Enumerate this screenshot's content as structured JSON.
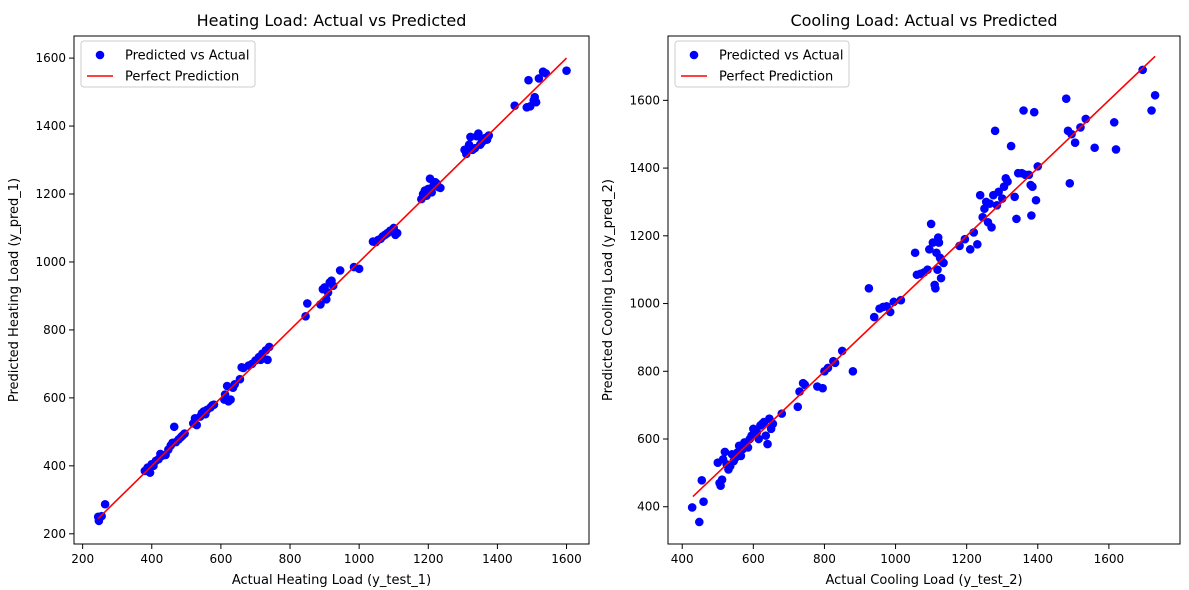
{
  "chart_data": [
    {
      "type": "scatter",
      "title": "Heating Load: Actual vs Predicted",
      "xlabel": "Actual Heating Load (y_test_1)",
      "ylabel": "Predicted Heating Load (y_pred_1)",
      "xlim": [
        175,
        1665
      ],
      "ylim": [
        170,
        1665
      ],
      "xticks": [
        200,
        400,
        600,
        800,
        1000,
        1200,
        1400,
        1600
      ],
      "yticks": [
        200,
        400,
        600,
        800,
        1000,
        1200,
        1400,
        1600
      ],
      "grid": false,
      "legend_position": "top-left",
      "legend": [
        "Predicted vs Actual",
        "Perfect Prediction"
      ],
      "scatter_color": "#0000ff",
      "line_color": "#ff0000",
      "line": {
        "x": [
          245,
          1600
        ],
        "y": [
          245,
          1600
        ]
      },
      "points": [
        [
          245,
          250
        ],
        [
          247,
          238
        ],
        [
          255,
          252
        ],
        [
          265,
          287
        ],
        [
          380,
          385
        ],
        [
          388,
          395
        ],
        [
          395,
          380
        ],
        [
          400,
          405
        ],
        [
          405,
          400
        ],
        [
          412,
          415
        ],
        [
          420,
          420
        ],
        [
          425,
          435
        ],
        [
          430,
          430
        ],
        [
          440,
          432
        ],
        [
          448,
          448
        ],
        [
          455,
          460
        ],
        [
          460,
          468
        ],
        [
          465,
          515
        ],
        [
          470,
          470
        ],
        [
          478,
          478
        ],
        [
          485,
          485
        ],
        [
          490,
          490
        ],
        [
          495,
          495
        ],
        [
          520,
          525
        ],
        [
          525,
          540
        ],
        [
          530,
          520
        ],
        [
          540,
          545
        ],
        [
          545,
          555
        ],
        [
          550,
          560
        ],
        [
          555,
          552
        ],
        [
          560,
          565
        ],
        [
          570,
          572
        ],
        [
          575,
          578
        ],
        [
          580,
          580
        ],
        [
          610,
          595
        ],
        [
          612,
          610
        ],
        [
          618,
          635
        ],
        [
          622,
          590
        ],
        [
          628,
          595
        ],
        [
          635,
          630
        ],
        [
          640,
          640
        ],
        [
          655,
          655
        ],
        [
          660,
          690
        ],
        [
          665,
          688
        ],
        [
          680,
          695
        ],
        [
          690,
          700
        ],
        [
          700,
          710
        ],
        [
          710,
          720
        ],
        [
          715,
          712
        ],
        [
          720,
          730
        ],
        [
          730,
          740
        ],
        [
          735,
          712
        ],
        [
          740,
          750
        ],
        [
          845,
          840
        ],
        [
          850,
          878
        ],
        [
          888,
          875
        ],
        [
          895,
          920
        ],
        [
          900,
          925
        ],
        [
          905,
          890
        ],
        [
          910,
          910
        ],
        [
          915,
          940
        ],
        [
          920,
          945
        ],
        [
          925,
          930
        ],
        [
          945,
          975
        ],
        [
          985,
          985
        ],
        [
          1000,
          980
        ],
        [
          1040,
          1060
        ],
        [
          1048,
          1058
        ],
        [
          1055,
          1065
        ],
        [
          1062,
          1068
        ],
        [
          1068,
          1075
        ],
        [
          1075,
          1080
        ],
        [
          1082,
          1085
        ],
        [
          1090,
          1092
        ],
        [
          1095,
          1090
        ],
        [
          1100,
          1100
        ],
        [
          1105,
          1080
        ],
        [
          1110,
          1085
        ],
        [
          1180,
          1185
        ],
        [
          1185,
          1200
        ],
        [
          1190,
          1210
        ],
        [
          1195,
          1195
        ],
        [
          1200,
          1215
        ],
        [
          1205,
          1245
        ],
        [
          1210,
          1205
        ],
        [
          1215,
          1225
        ],
        [
          1220,
          1235
        ],
        [
          1225,
          1230
        ],
        [
          1230,
          1220
        ],
        [
          1235,
          1218
        ],
        [
          1305,
          1330
        ],
        [
          1310,
          1318
        ],
        [
          1318,
          1345
        ],
        [
          1322,
          1368
        ],
        [
          1328,
          1330
        ],
        [
          1335,
          1335
        ],
        [
          1340,
          1370
        ],
        [
          1345,
          1378
        ],
        [
          1350,
          1345
        ],
        [
          1355,
          1352
        ],
        [
          1360,
          1358
        ],
        [
          1365,
          1365
        ],
        [
          1370,
          1360
        ],
        [
          1375,
          1372
        ],
        [
          1450,
          1460
        ],
        [
          1485,
          1455
        ],
        [
          1490,
          1535
        ],
        [
          1495,
          1458
        ],
        [
          1505,
          1475
        ],
        [
          1508,
          1485
        ],
        [
          1512,
          1470
        ],
        [
          1520,
          1540
        ],
        [
          1532,
          1560
        ],
        [
          1540,
          1555
        ],
        [
          1600,
          1563
        ]
      ]
    },
    {
      "type": "scatter",
      "title": "Cooling Load: Actual vs Predicted",
      "xlabel": "Actual Cooling Load (y_test_2)",
      "ylabel": "Predicted Cooling Load (y_pred_2)",
      "xlim": [
        360,
        1800
      ],
      "ylim": [
        290,
        1790
      ],
      "xticks": [
        400,
        600,
        800,
        1000,
        1200,
        1400,
        1600
      ],
      "yticks": [
        400,
        600,
        800,
        1000,
        1200,
        1400,
        1600
      ],
      "grid": false,
      "legend_position": "top-left",
      "legend": [
        "Predicted vs Actual",
        "Perfect Prediction"
      ],
      "scatter_color": "#0000ff",
      "line_color": "#ff0000",
      "line": {
        "x": [
          430,
          1730
        ],
        "y": [
          430,
          1730
        ]
      },
      "points": [
        [
          428,
          398
        ],
        [
          448,
          355
        ],
        [
          455,
          478
        ],
        [
          460,
          415
        ],
        [
          500,
          530
        ],
        [
          505,
          470
        ],
        [
          508,
          462
        ],
        [
          512,
          480
        ],
        [
          515,
          540
        ],
        [
          520,
          562
        ],
        [
          525,
          525
        ],
        [
          530,
          510
        ],
        [
          535,
          520
        ],
        [
          540,
          555
        ],
        [
          545,
          535
        ],
        [
          550,
          545
        ],
        [
          555,
          560
        ],
        [
          560,
          580
        ],
        [
          565,
          550
        ],
        [
          570,
          570
        ],
        [
          575,
          590
        ],
        [
          580,
          585
        ],
        [
          585,
          575
        ],
        [
          590,
          600
        ],
        [
          595,
          610
        ],
        [
          600,
          630
        ],
        [
          605,
          615
        ],
        [
          610,
          620
        ],
        [
          615,
          600
        ],
        [
          620,
          640
        ],
        [
          625,
          645
        ],
        [
          630,
          650
        ],
        [
          635,
          610
        ],
        [
          640,
          585
        ],
        [
          645,
          660
        ],
        [
          650,
          630
        ],
        [
          655,
          645
        ],
        [
          680,
          675
        ],
        [
          725,
          695
        ],
        [
          730,
          740
        ],
        [
          740,
          765
        ],
        [
          745,
          760
        ],
        [
          780,
          755
        ],
        [
          795,
          750
        ],
        [
          800,
          800
        ],
        [
          810,
          810
        ],
        [
          825,
          830
        ],
        [
          830,
          825
        ],
        [
          850,
          860
        ],
        [
          880,
          800
        ],
        [
          925,
          1045
        ],
        [
          940,
          960
        ],
        [
          955,
          985
        ],
        [
          965,
          990
        ],
        [
          975,
          992
        ],
        [
          985,
          975
        ],
        [
          995,
          1005
        ],
        [
          1015,
          1010
        ],
        [
          1055,
          1150
        ],
        [
          1060,
          1085
        ],
        [
          1070,
          1088
        ],
        [
          1080,
          1092
        ],
        [
          1090,
          1100
        ],
        [
          1095,
          1160
        ],
        [
          1100,
          1235
        ],
        [
          1105,
          1180
        ],
        [
          1110,
          1055
        ],
        [
          1112,
          1045
        ],
        [
          1115,
          1150
        ],
        [
          1118,
          1100
        ],
        [
          1120,
          1195
        ],
        [
          1122,
          1180
        ],
        [
          1125,
          1135
        ],
        [
          1128,
          1075
        ],
        [
          1130,
          1125
        ],
        [
          1135,
          1120
        ],
        [
          1180,
          1170
        ],
        [
          1195,
          1190
        ],
        [
          1210,
          1160
        ],
        [
          1220,
          1210
        ],
        [
          1230,
          1175
        ],
        [
          1238,
          1320
        ],
        [
          1245,
          1255
        ],
        [
          1250,
          1280
        ],
        [
          1255,
          1300
        ],
        [
          1260,
          1240
        ],
        [
          1265,
          1295
        ],
        [
          1270,
          1225
        ],
        [
          1275,
          1320
        ],
        [
          1280,
          1510
        ],
        [
          1285,
          1290
        ],
        [
          1290,
          1330
        ],
        [
          1300,
          1310
        ],
        [
          1305,
          1345
        ],
        [
          1310,
          1370
        ],
        [
          1315,
          1360
        ],
        [
          1325,
          1465
        ],
        [
          1335,
          1315
        ],
        [
          1340,
          1250
        ],
        [
          1345,
          1385
        ],
        [
          1355,
          1385
        ],
        [
          1360,
          1570
        ],
        [
          1365,
          1380
        ],
        [
          1375,
          1380
        ],
        [
          1380,
          1350
        ],
        [
          1382,
          1260
        ],
        [
          1385,
          1345
        ],
        [
          1390,
          1565
        ],
        [
          1395,
          1305
        ],
        [
          1400,
          1405
        ],
        [
          1480,
          1605
        ],
        [
          1485,
          1510
        ],
        [
          1490,
          1355
        ],
        [
          1495,
          1500
        ],
        [
          1505,
          1475
        ],
        [
          1520,
          1520
        ],
        [
          1535,
          1545
        ],
        [
          1560,
          1460
        ],
        [
          1615,
          1535
        ],
        [
          1620,
          1455
        ],
        [
          1695,
          1690
        ],
        [
          1720,
          1570
        ],
        [
          1730,
          1615
        ]
      ]
    }
  ]
}
